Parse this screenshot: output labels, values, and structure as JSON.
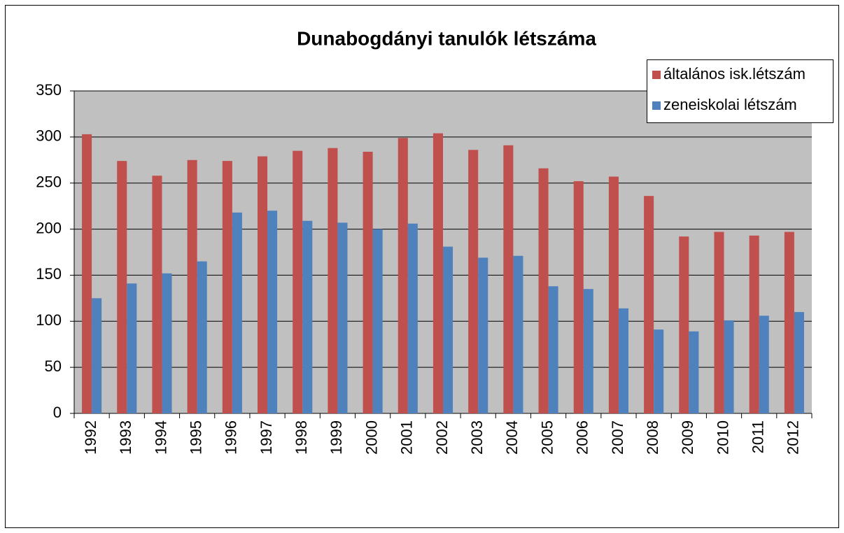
{
  "chart_data": {
    "type": "bar",
    "title": "Dunabogdányi tanulók létszáma",
    "categories": [
      "1992",
      "1993",
      "1994",
      "1995",
      "1996",
      "1997",
      "1998",
      "1999",
      "2000",
      "2001",
      "2002",
      "2003",
      "2004",
      "2005",
      "2006",
      "2007",
      "2008",
      "2009",
      "2010",
      "2011",
      "2012"
    ],
    "series": [
      {
        "name": "általános isk.létszám",
        "color": "#c0504d",
        "values": [
          303,
          274,
          258,
          275,
          274,
          279,
          285,
          288,
          284,
          299,
          304,
          286,
          291,
          266,
          252,
          257,
          236,
          192,
          197,
          193,
          197
        ]
      },
      {
        "name": "zeneiskolai létszám",
        "color": "#4f81bd",
        "values": [
          125,
          141,
          152,
          165,
          218,
          220,
          209,
          207,
          200,
          206,
          181,
          169,
          171,
          138,
          135,
          114,
          91,
          89,
          101,
          106,
          110
        ]
      }
    ],
    "ylim": [
      0,
      350
    ],
    "yticks": [
      0,
      50,
      100,
      150,
      200,
      250,
      300,
      350
    ],
    "grid": true,
    "legend": "top-right",
    "plot_background": "#c0c0c0"
  }
}
